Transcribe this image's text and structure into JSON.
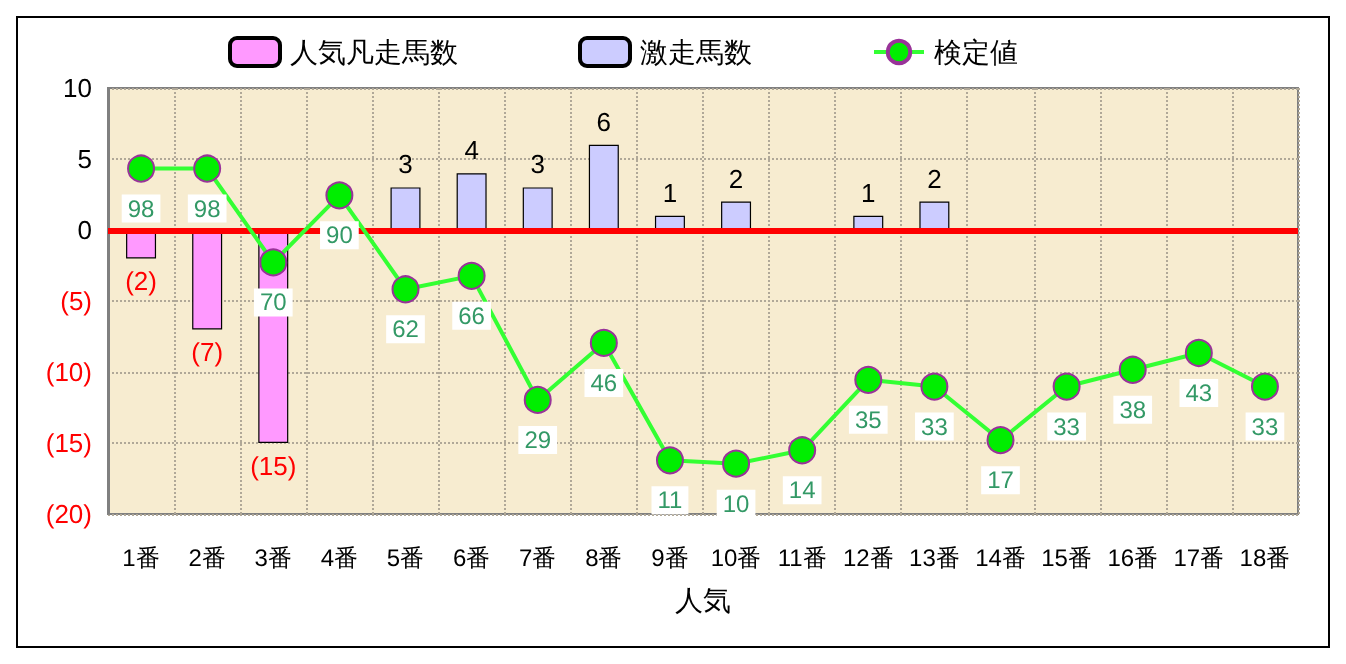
{
  "chart_data": {
    "type": "bar",
    "xlabel": "人気",
    "categories": [
      "1番",
      "2番",
      "3番",
      "4番",
      "5番",
      "6番",
      "7番",
      "8番",
      "9番",
      "10番",
      "11番",
      "12番",
      "13番",
      "14番",
      "15番",
      "16番",
      "17番",
      "18番"
    ],
    "series": [
      {
        "name": "人気凡走馬数",
        "color": "#ff99ff",
        "values": [
          -2,
          -7,
          -15,
          null,
          null,
          null,
          null,
          null,
          null,
          null,
          null,
          null,
          null,
          null,
          null,
          null,
          null,
          null
        ],
        "value_labels": [
          "(2)",
          "(7)",
          "(15)",
          null,
          null,
          null,
          null,
          null,
          null,
          null,
          null,
          null,
          null,
          null,
          null,
          null,
          null,
          null
        ]
      },
      {
        "name": "激走馬数",
        "color": "#ccccff",
        "values": [
          null,
          null,
          null,
          null,
          3,
          4,
          3,
          6,
          1,
          2,
          null,
          1,
          2,
          null,
          null,
          null,
          null,
          null
        ],
        "value_labels": [
          null,
          null,
          null,
          null,
          "3",
          "4",
          "3",
          "6",
          "1",
          "2",
          null,
          "1",
          "2",
          null,
          null,
          null,
          null,
          null
        ]
      },
      {
        "name": "検定値",
        "type": "line",
        "axis": "y2",
        "color": "#33ff33",
        "marker": "circle",
        "values": [
          98,
          98,
          70,
          90,
          62,
          66,
          29,
          46,
          11,
          10,
          14,
          35,
          33,
          17,
          33,
          38,
          43,
          33
        ],
        "value_labels": [
          "98",
          "98",
          "70",
          "90",
          "62",
          "66",
          "29",
          "46",
          "11",
          "10",
          "14",
          "35",
          "33",
          "17",
          "33",
          "38",
          "43",
          "33"
        ]
      }
    ],
    "ylim": [
      -20,
      10
    ],
    "yticks": [
      {
        "value": -20,
        "label": "(20)"
      },
      {
        "value": -15,
        "label": "(15)"
      },
      {
        "value": -10,
        "label": "(10)"
      },
      {
        "value": -5,
        "label": "(5)"
      },
      0,
      5,
      10
    ],
    "y2lim": [
      -5,
      122
    ],
    "ref_lines": [
      {
        "axis": "y",
        "value": 0,
        "color": "#ff0000"
      }
    ],
    "grid": true,
    "legend": "top"
  }
}
